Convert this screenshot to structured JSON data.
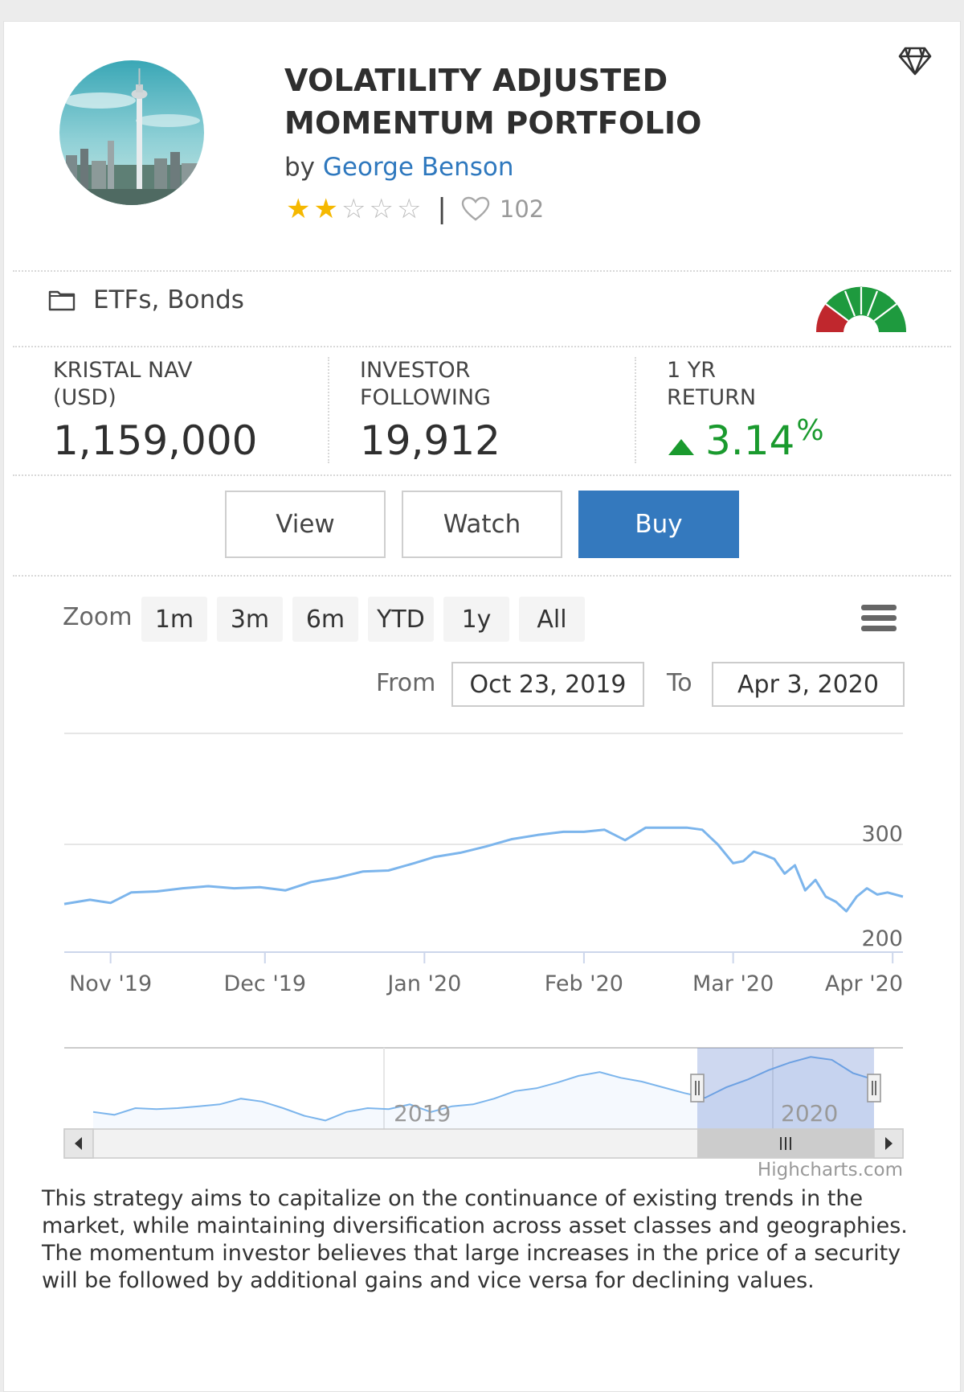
{
  "portfolio": {
    "title_line1": "VOLATILITY ADJUSTED",
    "title_line2": "MOMENTUM PORTFOLIO",
    "by_prefix": "by",
    "author": "George Benson",
    "rating": 2,
    "rating_max": 5,
    "likes": "102",
    "separator": "|"
  },
  "category": {
    "label": "ETFs, Bonds"
  },
  "stats": {
    "nav_label_line1": "KRISTAL NAV",
    "nav_label_line2": "(USD)",
    "nav_value": "1,159,000",
    "followers_label_line1": "INVESTOR",
    "followers_label_line2": "FOLLOWING",
    "followers_value": "19,912",
    "return_label_line1": "1 YR",
    "return_label_line2": "RETURN",
    "return_value": "3.14",
    "return_unit": "%",
    "return_color": "#1a9a2e"
  },
  "actions": {
    "view_label": "View",
    "watch_label": "Watch",
    "buy_label": "Buy",
    "buy_color": "#3479be"
  },
  "chart_controls": {
    "zoom_label": "Zoom",
    "zoom_options": [
      "1m",
      "3m",
      "6m",
      "YTD",
      "1y",
      "All"
    ],
    "from_label": "From",
    "from_value": "Oct 23, 2019",
    "to_label": "To",
    "to_value": "Apr 3, 2020"
  },
  "chart_data": {
    "type": "line",
    "x_ticks": [
      "Nov '19",
      "Dec '19",
      "Jan '20",
      "Feb '20",
      "Mar '20",
      "Apr '20"
    ],
    "y_ticks": [
      300,
      200
    ],
    "ylim": [
      200,
      340
    ],
    "line_color": "#7cb5ec",
    "series": [
      {
        "x": [
          "2019-10-23",
          "2019-10-28",
          "2019-11-01",
          "2019-11-05",
          "2019-11-10",
          "2019-11-15",
          "2019-11-20",
          "2019-11-25",
          "2019-11-30",
          "2019-12-05",
          "2019-12-10",
          "2019-12-15",
          "2019-12-20",
          "2019-12-25",
          "2019-12-30",
          "2020-01-03",
          "2020-01-08",
          "2020-01-13",
          "2020-01-18",
          "2020-01-23",
          "2020-01-28",
          "2020-02-01",
          "2020-02-05",
          "2020-02-09",
          "2020-02-13",
          "2020-02-17",
          "2020-02-21",
          "2020-02-24",
          "2020-02-27",
          "2020-03-01",
          "2020-03-03",
          "2020-03-05",
          "2020-03-07",
          "2020-03-09",
          "2020-03-11",
          "2020-03-13",
          "2020-03-15",
          "2020-03-17",
          "2020-03-19",
          "2020-03-21",
          "2020-03-23",
          "2020-03-25",
          "2020-03-27",
          "2020-03-29",
          "2020-03-31",
          "2020-04-03"
        ],
        "values": [
          243,
          247,
          244,
          254,
          255,
          258,
          260,
          258,
          259,
          256,
          264,
          268,
          274,
          275,
          282,
          288,
          292,
          298,
          305,
          309,
          312,
          312,
          314,
          304,
          316,
          316,
          316,
          314,
          300,
          282,
          284,
          293,
          290,
          286,
          272,
          280,
          256,
          266,
          250,
          245,
          236,
          250,
          258,
          252,
          254,
          250
        ]
      }
    ],
    "navigator": {
      "labels": [
        "2019",
        "2020"
      ],
      "values": [
        218,
        215,
        222,
        221,
        222,
        224,
        226,
        232,
        229,
        222,
        214,
        209,
        218,
        222,
        221,
        226,
        218,
        224,
        226,
        232,
        240,
        243,
        249,
        256,
        260,
        254,
        250,
        244,
        238,
        233,
        244,
        252,
        262,
        270,
        276,
        273,
        259,
        252
      ]
    }
  },
  "credit": "Highcharts.com",
  "description": "This strategy aims to capitalize on the continuance of existing trends in the market, while maintaining diversification across asset classes and geographies. The momentum investor believes that large increases in the price of a security will be followed by additional gains and vice versa for declining values.",
  "icons": {
    "premium": "diamond-icon",
    "category": "folder-icon",
    "likes": "heart-icon",
    "risk": "risk-gauge-icon",
    "menu": "hamburger-menu-icon",
    "return": "up-triangle-icon"
  }
}
